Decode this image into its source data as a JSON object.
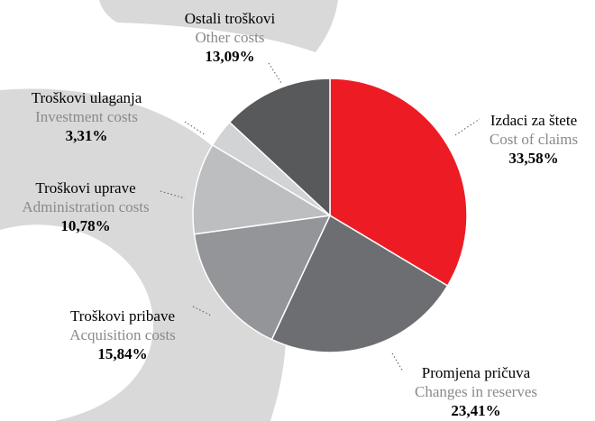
{
  "chart_data": {
    "type": "pie",
    "categories": [
      "Izdaci za štete",
      "Promjena pričuva",
      "Troškovi pribave",
      "Troškovi uprave",
      "Troškovi ulaganja",
      "Ostali troškovi"
    ],
    "categories_en": [
      "Cost of claims",
      "Changes in reserves",
      "Acquisition costs",
      "Administration costs",
      "Investment costs",
      "Other costs"
    ],
    "values": [
      33.58,
      23.41,
      15.84,
      10.78,
      3.31,
      13.09
    ],
    "value_labels": [
      "33,58%",
      "23,41%",
      "15,84%",
      "10,78%",
      "3,31%",
      "13,09%"
    ],
    "colors": [
      "#ed1c24",
      "#6d6e71",
      "#939598",
      "#bcbec0",
      "#d1d3d4",
      "#58595b"
    ]
  }
}
